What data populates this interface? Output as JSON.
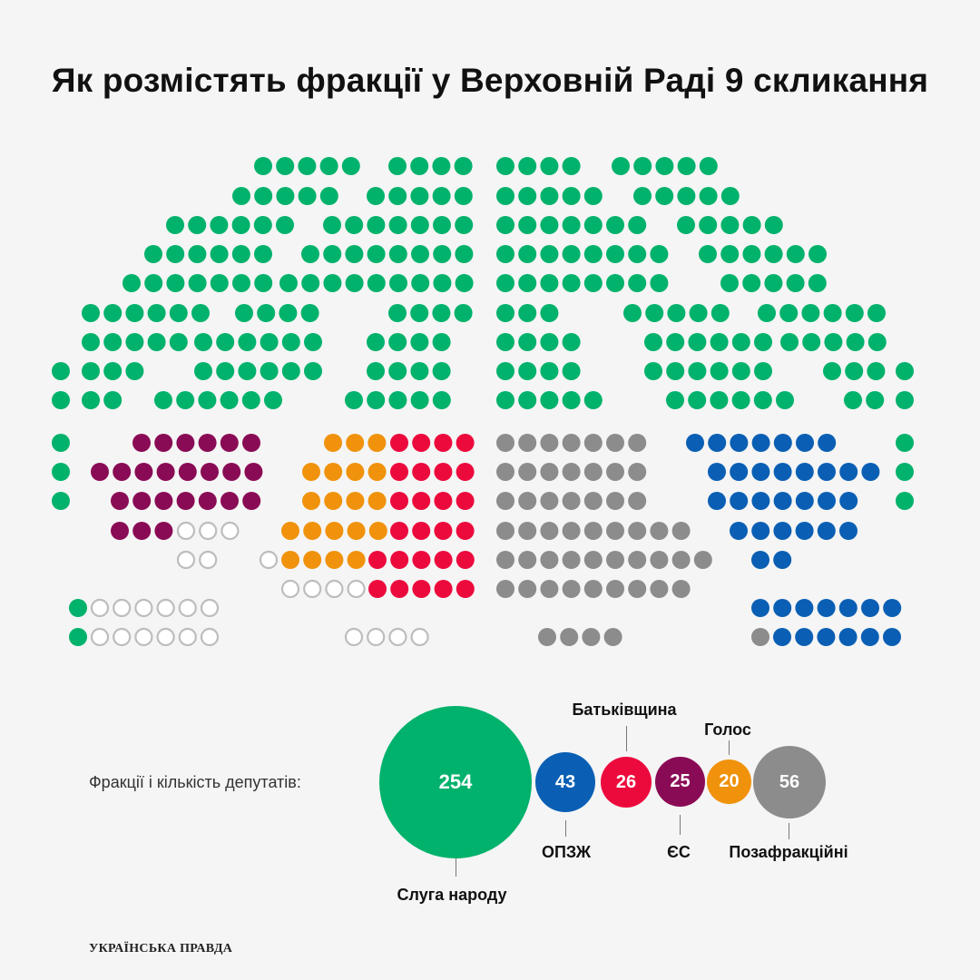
{
  "title": "Як розмістять фракції у Верховній Раді 9 скликання",
  "legend_label": "Фракції і кількість депутатів:",
  "colors": {
    "sluha": "#00b26b",
    "opzzh": "#0a5fb4",
    "batk": "#ec0a3d",
    "es": "#8a0b55",
    "holos": "#f0920b",
    "pozafr": "#8c8c8c",
    "empty": "#bdbdbd"
  },
  "factions": [
    {
      "key": "sluha",
      "name": "Слуга народу",
      "count": "254",
      "color": "#00b26b"
    },
    {
      "key": "opzzh",
      "name": "ОПЗЖ",
      "count": "43",
      "color": "#0a5fb4"
    },
    {
      "key": "batk",
      "name": "Батьківщина",
      "count": "26",
      "color": "#ec0a3d"
    },
    {
      "key": "es",
      "name": "ЄС",
      "count": "25",
      "color": "#8a0b55"
    },
    {
      "key": "holos",
      "name": "Голос",
      "count": "20",
      "color": "#f0920b"
    },
    {
      "key": "pozafr",
      "name": "Позафракційні",
      "count": "56",
      "color": "#8c8c8c"
    }
  ],
  "footer_logo": "УКРАЇНСЬКА ПРАВДА"
}
